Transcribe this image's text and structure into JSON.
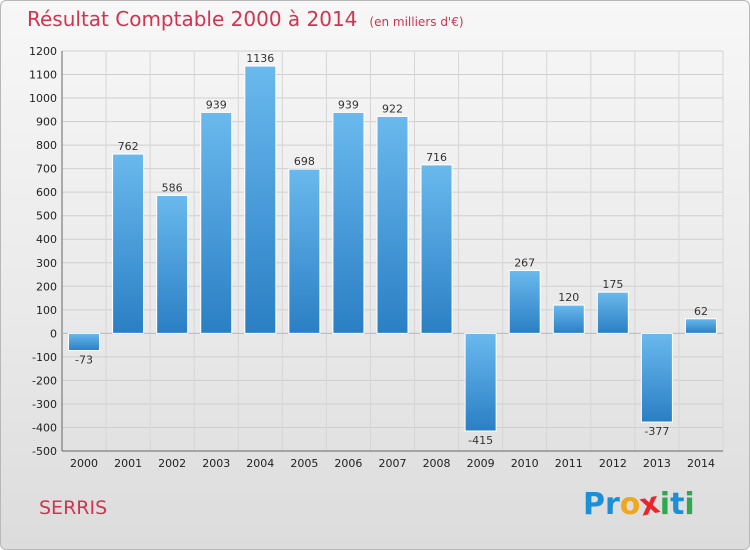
{
  "title": "Résultat Comptable 2000 à 2014",
  "unit": "(en milliers d'€)",
  "place": "SERRIS",
  "logo": {
    "letters": [
      "P",
      "r",
      "o",
      "x",
      "i",
      "t",
      "i"
    ],
    "colors": [
      "#1c8fd6",
      "#1c8fd6",
      "#f0a81b",
      "#e8262c",
      "#2fa84f",
      "#1c8fd6",
      "#2fa84f"
    ]
  },
  "colors": {
    "bar_light": "#6ab9ee",
    "bar_dark": "#2a7fc4",
    "title": "#d0344e"
  },
  "chart_data": {
    "type": "bar",
    "categories": [
      "2000",
      "2001",
      "2002",
      "2003",
      "2004",
      "2005",
      "2006",
      "2007",
      "2008",
      "2009",
      "2010",
      "2011",
      "2012",
      "2013",
      "2014"
    ],
    "values": [
      -73,
      762,
      586,
      939,
      1136,
      698,
      939,
      922,
      716,
      -415,
      267,
      120,
      175,
      -377,
      62
    ],
    "ylim": [
      -500,
      1200
    ],
    "yticks": [
      1200,
      1100,
      1000,
      900,
      800,
      700,
      600,
      500,
      400,
      300,
      200,
      100,
      0,
      -100,
      -200,
      -300,
      -400,
      -500
    ],
    "grid": true,
    "xlabel": "",
    "ylabel": ""
  }
}
